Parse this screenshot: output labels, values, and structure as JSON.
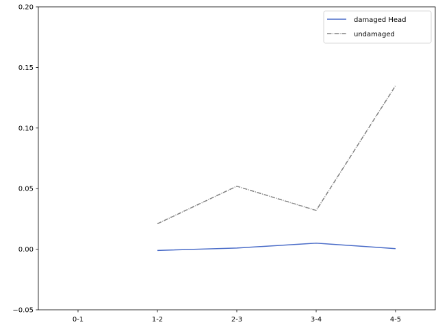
{
  "chart_data": {
    "type": "line",
    "categories": [
      "0-1",
      "1-2",
      "2-3",
      "3-4",
      "4-5"
    ],
    "series": [
      {
        "name": "damaged Head",
        "color": "#4a6cc8",
        "linestyle": "solid",
        "values": [
          null,
          -0.001,
          0.001,
          0.005,
          0.0005
        ]
      },
      {
        "name": "undamaged",
        "color": "#808080",
        "linestyle": "dashdot",
        "values": [
          null,
          0.021,
          0.052,
          0.032,
          0.135
        ]
      }
    ],
    "ylim": [
      -0.05,
      0.2
    ],
    "yticks": [
      -0.05,
      0.0,
      0.05,
      0.1,
      0.15,
      0.2
    ],
    "ytick_labels": [
      "−0.05",
      "0.00",
      "0.05",
      "0.10",
      "0.15",
      "0.20"
    ],
    "grid": false,
    "legend_position": "top-right"
  }
}
